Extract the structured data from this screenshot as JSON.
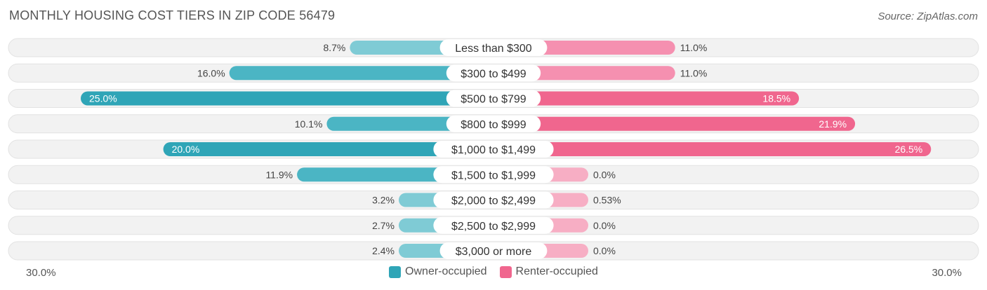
{
  "title": "MONTHLY HOUSING COST TIERS IN ZIP CODE 56479",
  "source": "Source: ZipAtlas.com",
  "colors": {
    "owner": "#4bb5c4",
    "owner_strong": "#2fa5b7",
    "renter": "#f590b0",
    "renter_strong": "#f0668e",
    "row_bg": "#f1f1f1"
  },
  "chart_data": {
    "type": "bar",
    "orientation": "horizontal-diverging",
    "title": "MONTHLY HOUSING COST TIERS IN ZIP CODE 56479",
    "categories": [
      "Less than $300",
      "$300 to $499",
      "$500 to $799",
      "$800 to $999",
      "$1,000 to $1,499",
      "$1,500 to $1,999",
      "$2,000 to $2,499",
      "$2,500 to $2,999",
      "$3,000 or more"
    ],
    "series": [
      {
        "name": "Owner-occupied",
        "values": [
          8.7,
          16.0,
          25.0,
          10.1,
          20.0,
          11.9,
          3.2,
          2.7,
          2.4
        ],
        "labels": [
          "8.7%",
          "16.0%",
          "25.0%",
          "10.1%",
          "20.0%",
          "11.9%",
          "3.2%",
          "2.7%",
          "2.4%"
        ]
      },
      {
        "name": "Renter-occupied",
        "values": [
          11.0,
          11.0,
          18.5,
          21.9,
          26.5,
          0.0,
          0.53,
          0.0,
          0.0
        ],
        "labels": [
          "11.0%",
          "11.0%",
          "18.5%",
          "21.9%",
          "26.5%",
          "0.0%",
          "0.53%",
          "0.0%",
          "0.0%"
        ]
      }
    ],
    "xlim": [
      -30,
      30
    ],
    "axis_min_label": "30.0%",
    "axis_max_label": "30.0%",
    "legend_position": "bottom-center"
  }
}
